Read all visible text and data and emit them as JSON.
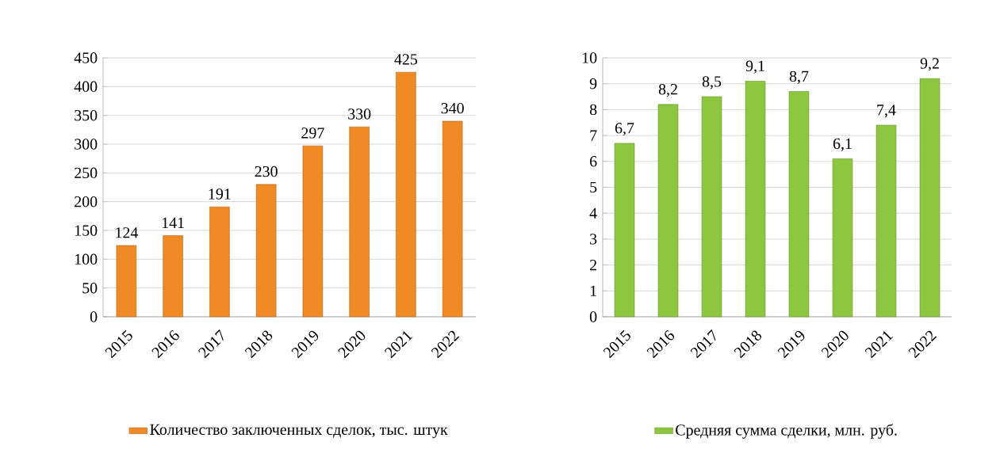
{
  "chart_data": [
    {
      "type": "bar",
      "categories": [
        "2015",
        "2016",
        "2017",
        "2018",
        "2019",
        "2020",
        "2021",
        "2022"
      ],
      "series": [
        {
          "name": "Количество заключенных сделок, тыс. штук",
          "color": "#f08a24",
          "values": [
            124,
            141,
            191,
            230,
            297,
            330,
            425,
            340
          ]
        }
      ],
      "ylim": [
        0,
        450
      ],
      "yticks": [
        0,
        50,
        100,
        150,
        200,
        250,
        300,
        350,
        400,
        450
      ],
      "grid": "y",
      "legend": "bottom",
      "data_labels": true
    },
    {
      "type": "bar",
      "categories": [
        "2015",
        "2016",
        "2017",
        "2018",
        "2019",
        "2020",
        "2021",
        "2022"
      ],
      "series": [
        {
          "name": "Средняя сумма сделки, млн. руб.",
          "color": "#8dc63f",
          "values": [
            6.7,
            8.2,
            8.5,
            9.1,
            8.7,
            6.1,
            7.4,
            9.2
          ],
          "value_labels": [
            "6,7",
            "8,2",
            "8,5",
            "9,1",
            "8,7",
            "6,1",
            "7,4",
            "9,2"
          ]
        }
      ],
      "ylim": [
        0,
        10
      ],
      "yticks": [
        0,
        1,
        2,
        3,
        4,
        5,
        6,
        7,
        8,
        9,
        10
      ],
      "grid": "y",
      "legend": "bottom"
    }
  ]
}
